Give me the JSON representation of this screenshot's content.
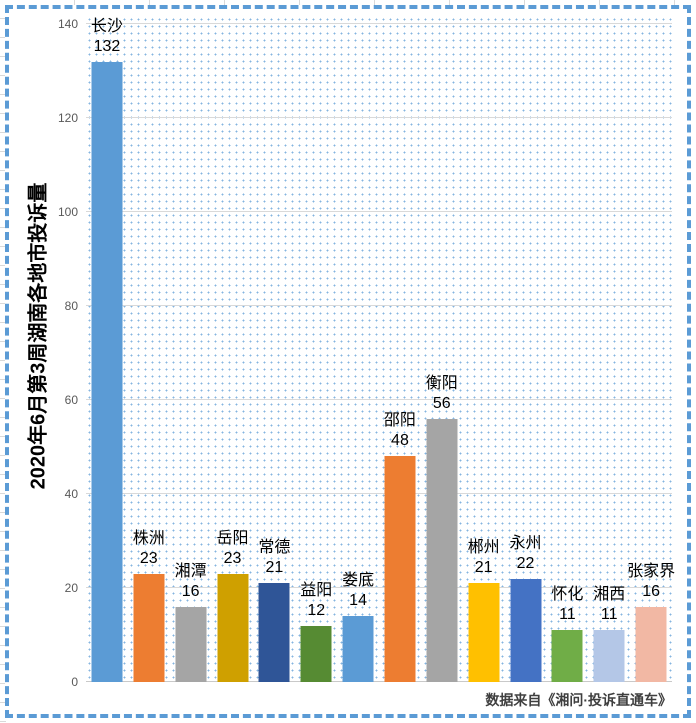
{
  "chart_data": {
    "type": "bar",
    "title": "2020年6月第3周湖南各地市投诉量",
    "categories": [
      "长沙",
      "株洲",
      "湘潭",
      "岳阳",
      "常德",
      "益阳",
      "娄底",
      "邵阳",
      "衡阳",
      "郴州",
      "永州",
      "怀化",
      "湘西",
      "张家界"
    ],
    "values": [
      132,
      23,
      16,
      23,
      21,
      12,
      14,
      48,
      56,
      21,
      22,
      11,
      11,
      16
    ],
    "bar_colors": [
      "#5B9BD5",
      "#ED7D31",
      "#A5A5A5",
      "#CFA000",
      "#2F5597",
      "#568B33",
      "#5B9BD5",
      "#ED7D31",
      "#A5A5A5",
      "#FFC000",
      "#4472C4",
      "#70AD47",
      "#B4C7E7",
      "#F2B8A4"
    ],
    "xlabel": "",
    "ylabel": "2020年6月第3周湖南各地市投诉量",
    "ylim": [
      0,
      140
    ],
    "yticks": [
      0,
      20,
      40,
      60,
      80,
      100,
      120,
      140
    ],
    "grid": true,
    "legend": "none",
    "source_note": "数据来自《湘问·投诉直通车》"
  },
  "style": {
    "accent": "#5B9BD5",
    "border_color": "#5B9BD5",
    "grid_color": "#D9D9D9",
    "plot_dot_color": "#93B9DE",
    "tick_color": "#595959",
    "label_color": "#000000",
    "source_color": "#3F3F3F"
  }
}
